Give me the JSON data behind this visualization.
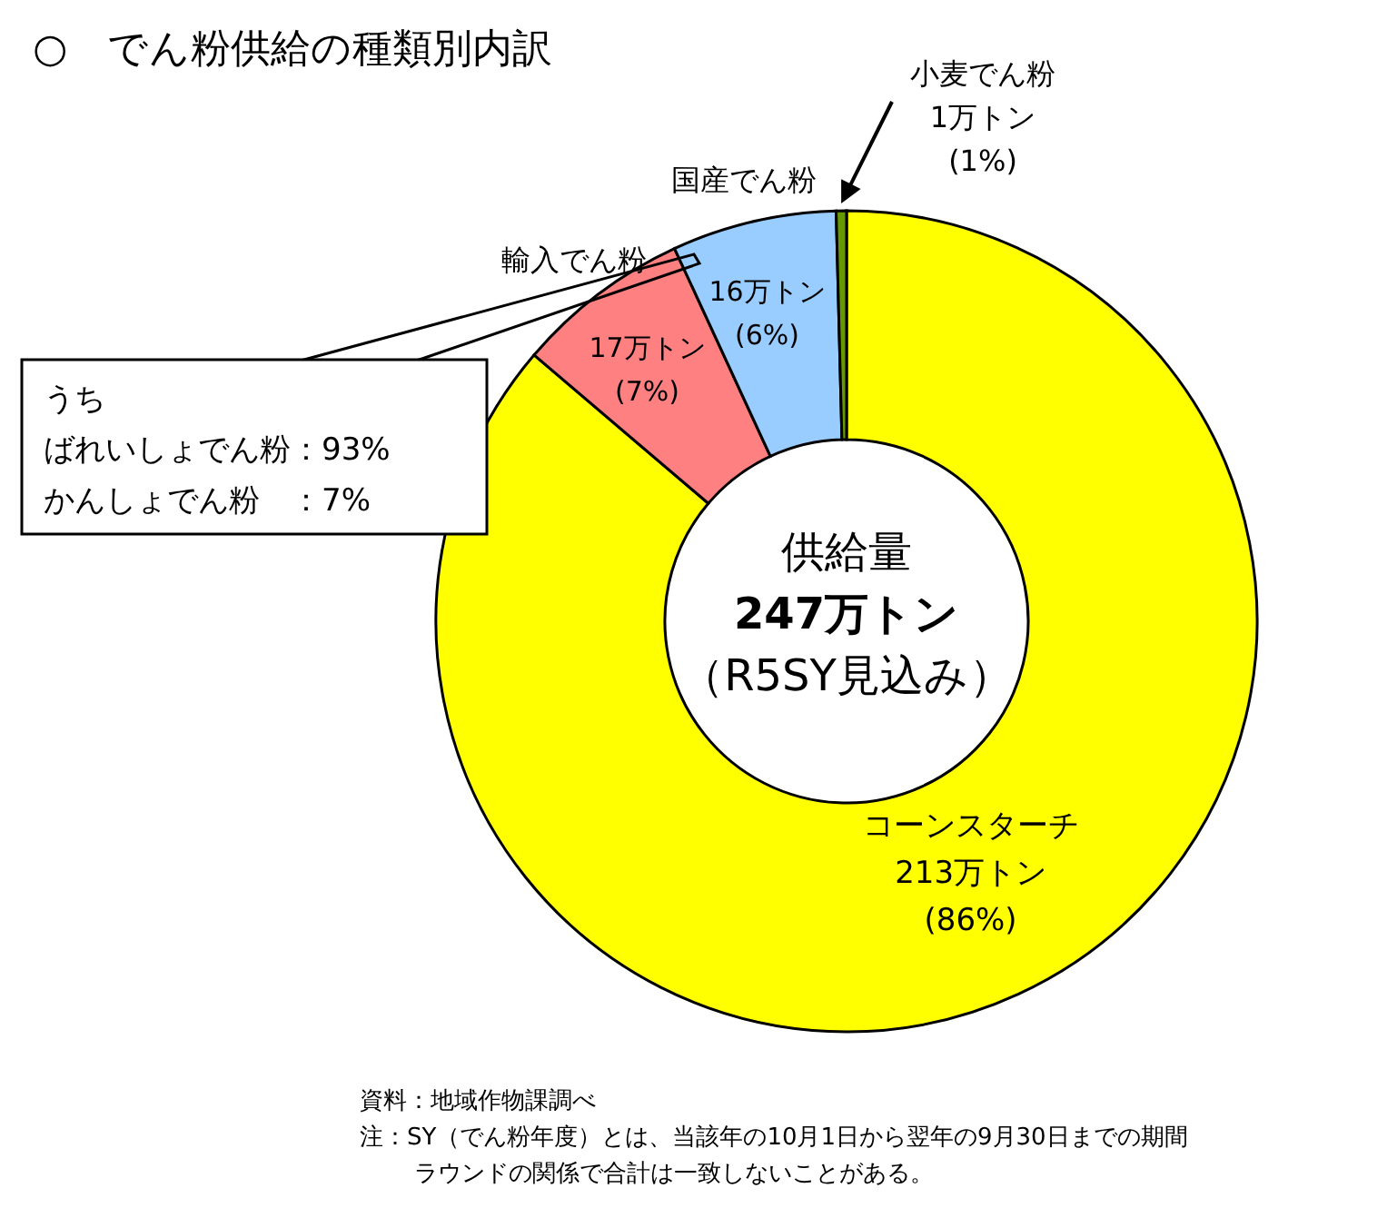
{
  "chart_data": {
    "type": "donut",
    "title": "○　でん粉供給の種類別内訳",
    "categories": [
      "コーンスターチ",
      "輸入でん粉",
      "国産でん粉",
      "小麦でん粉"
    ],
    "values": [
      213,
      17,
      16,
      1
    ],
    "colors": [
      "#ffff00",
      "#ff8080",
      "#99ccff",
      "#669900"
    ],
    "value_labels": [
      "213万トン (86%)",
      "17万トン (7%)",
      "16万トン (6%)",
      "1万トン (1%)"
    ],
    "annotations": [
      "供給量",
      "247万トン",
      "（R5SY見込み）",
      "うち",
      "ばれいしょでん粉：93%",
      "かんしょでん粉　：7%",
      "資料：地域作物課調べ",
      "注：SY（でん粉年度）とは、当該年の10月1日から翌年の9月30日までの期間",
      "ラウンドの関係で合計は一致しないことがある。"
    ]
  }
}
